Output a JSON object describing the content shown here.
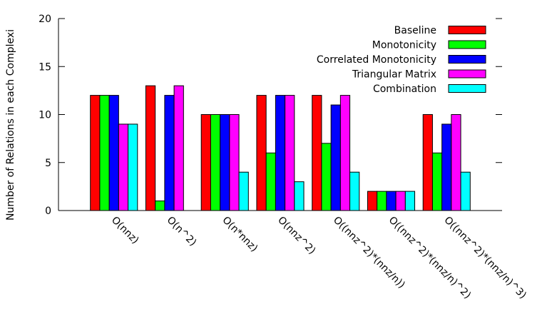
{
  "chart_data": {
    "type": "bar",
    "title": "",
    "xlabel": "",
    "ylabel": "Number of Relations in each Complexi",
    "ylim": [
      0,
      20
    ],
    "yticks": [
      "0",
      "5",
      "10",
      "15",
      "20"
    ],
    "grid": false,
    "legend_position": "top-right",
    "categories": [
      "O(nnz)",
      "O(n^2)",
      "O(n*nnz)",
      "O(nnz^2)",
      "O((nnz^2)*(nnz/n))",
      "O((nnz^2)*(nnz/n)^2)",
      "O((nnz^2)*(nnz/n)^3)"
    ],
    "series": [
      {
        "name": "Baseline",
        "color": "#ff0000",
        "values": [
          12,
          13,
          10,
          12,
          12,
          2,
          10
        ]
      },
      {
        "name": "Monotonicity",
        "color": "#00ff00",
        "values": [
          12,
          1,
          10,
          6,
          7,
          2,
          6
        ]
      },
      {
        "name": "Correlated Monotonicity",
        "color": "#0000ff",
        "values": [
          12,
          12,
          10,
          12,
          11,
          2,
          9
        ]
      },
      {
        "name": "Triangular Matrix",
        "color": "#ff00ff",
        "values": [
          9,
          13,
          10,
          12,
          12,
          2,
          10
        ]
      },
      {
        "name": "Combination",
        "color": "#00ffff",
        "values": [
          9,
          0,
          4,
          3,
          4,
          2,
          4
        ]
      }
    ]
  }
}
